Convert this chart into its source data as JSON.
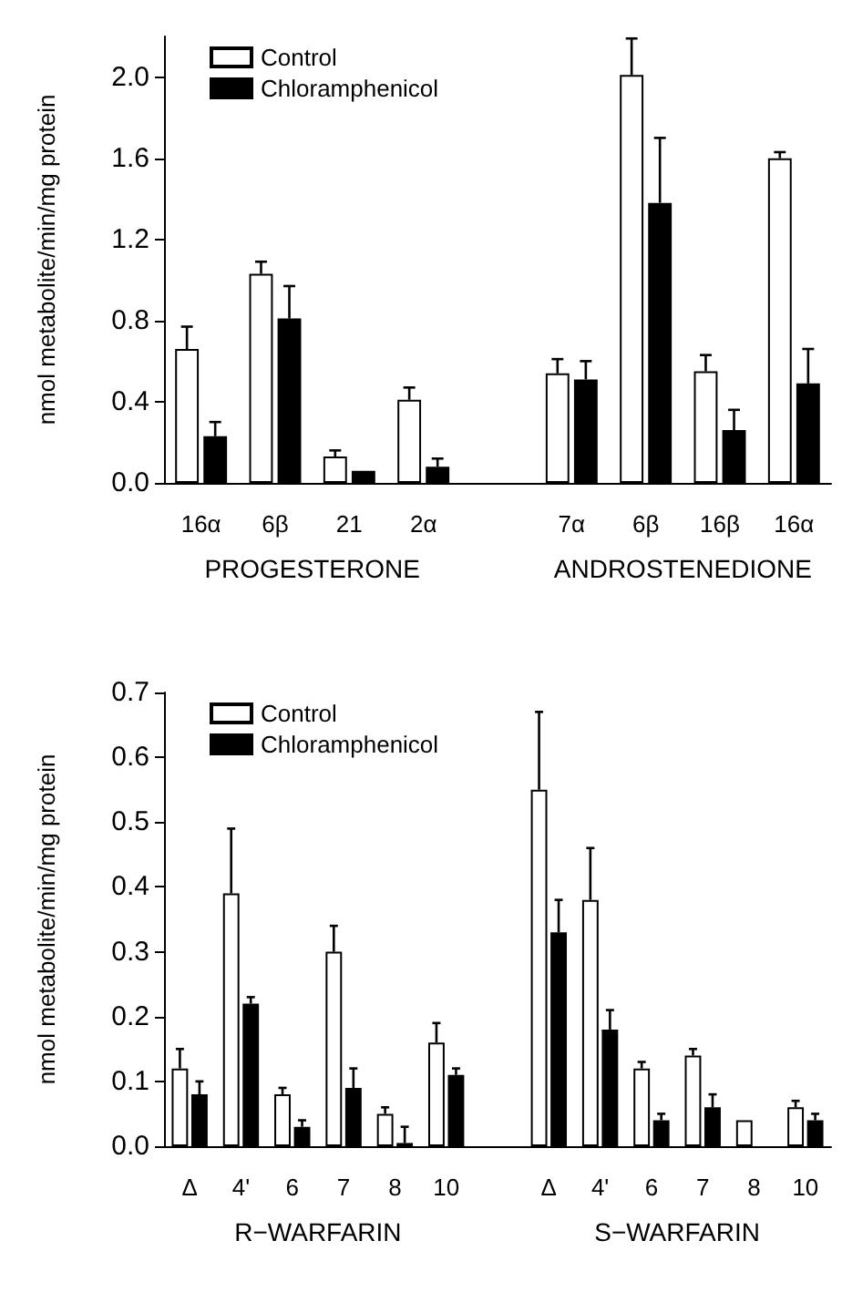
{
  "chart_data": [
    {
      "type": "bar",
      "ylabel": "nmol metabolite/min/mg protein",
      "categories": [
        "16α",
        "6β",
        "21",
        "2α",
        null,
        "7α",
        "6β",
        "16β",
        "16α"
      ],
      "series": [
        {
          "name": "Control",
          "color": "#ffffff",
          "values": [
            0.66,
            1.03,
            0.13,
            0.41,
            null,
            0.54,
            2.01,
            0.55,
            1.6
          ],
          "errors": [
            [
              0.66,
              0.77
            ],
            [
              1.03,
              1.09
            ],
            [
              0.13,
              0.16
            ],
            [
              0.41,
              0.47
            ],
            null,
            [
              0.54,
              0.61
            ],
            [
              2.01,
              2.19
            ],
            [
              0.55,
              0.63
            ],
            [
              1.6,
              1.63
            ]
          ]
        },
        {
          "name": "Chloramphenicol",
          "color": "#000000",
          "values": [
            0.23,
            0.81,
            0.06,
            0.08,
            null,
            0.51,
            1.38,
            0.26,
            0.49
          ],
          "errors": [
            [
              0.23,
              0.3
            ],
            [
              0.81,
              0.97
            ],
            null,
            [
              0.08,
              0.12
            ],
            null,
            [
              0.51,
              0.6
            ],
            [
              1.38,
              1.7
            ],
            [
              0.26,
              0.36
            ],
            [
              0.49,
              0.66
            ]
          ]
        }
      ],
      "annotations": [
        "PROGESTERONE",
        "ANDROSTENEDIONE"
      ],
      "ylim": [
        0,
        2.2
      ],
      "yticks": [
        {
          "value": 0,
          "label": "0.0"
        },
        {
          "value": 0.4,
          "label": "0.4"
        },
        {
          "value": 0.8,
          "label": "0.8"
        },
        {
          "value": 1.2,
          "label": "1.2"
        },
        {
          "value": 1.6,
          "label": "1.6"
        },
        {
          "value": 2,
          "label": "2.0"
        }
      ],
      "legend": "top left",
      "grid": false
    },
    {
      "type": "bar",
      "ylabel": "nmol metabolite/min/mg protein",
      "categories": [
        "Δ",
        "4'",
        "6",
        "7",
        "8",
        "10",
        null,
        "Δ",
        "4'",
        "6",
        "7",
        "8",
        "10"
      ],
      "series": [
        {
          "name": "Control",
          "color": "#ffffff",
          "values": [
            0.12,
            0.39,
            0.08,
            0.3,
            0.05,
            0.16,
            null,
            0.55,
            0.38,
            0.12,
            0.14,
            0.04,
            0.06
          ],
          "errors": [
            [
              0.12,
              0.15
            ],
            [
              0.39,
              0.49
            ],
            [
              0.08,
              0.09
            ],
            [
              0.3,
              0.34
            ],
            [
              0.05,
              0.06
            ],
            [
              0.16,
              0.19
            ],
            null,
            [
              0.55,
              0.67
            ],
            [
              0.38,
              0.46
            ],
            [
              0.12,
              0.13
            ],
            [
              0.14,
              0.15
            ],
            null,
            [
              0.06,
              0.07
            ]
          ]
        },
        {
          "name": "Chloramphenicol",
          "color": "#000000",
          "values": [
            0.08,
            0.22,
            0.03,
            0.09,
            0.005,
            0.11,
            null,
            0.33,
            0.18,
            0.04,
            0.06,
            null,
            0.04
          ],
          "errors": [
            [
              0.08,
              0.1
            ],
            [
              0.22,
              0.23
            ],
            [
              0.03,
              0.04
            ],
            [
              0.09,
              0.12
            ],
            [
              0.005,
              0.03
            ],
            [
              0.11,
              0.12
            ],
            null,
            [
              0.33,
              0.38
            ],
            [
              0.18,
              0.21
            ],
            [
              0.04,
              0.05
            ],
            [
              0.06,
              0.08
            ],
            null,
            [
              0.04,
              0.05
            ]
          ]
        }
      ],
      "annotations": [
        "R−WARFARIN",
        "S−WARFARIN"
      ],
      "ylim": [
        0,
        0.7
      ],
      "yticks": [
        {
          "value": 0,
          "label": "0.0"
        },
        {
          "value": 0.1,
          "label": "0.1"
        },
        {
          "value": 0.2,
          "label": "0.2"
        },
        {
          "value": 0.3,
          "label": "0.3"
        },
        {
          "value": 0.4,
          "label": "0.4"
        },
        {
          "value": 0.5,
          "label": "0.5"
        },
        {
          "value": 0.6,
          "label": "0.6"
        },
        {
          "value": 0.7,
          "label": "0.7"
        }
      ],
      "legend": "top left",
      "grid": false
    }
  ]
}
